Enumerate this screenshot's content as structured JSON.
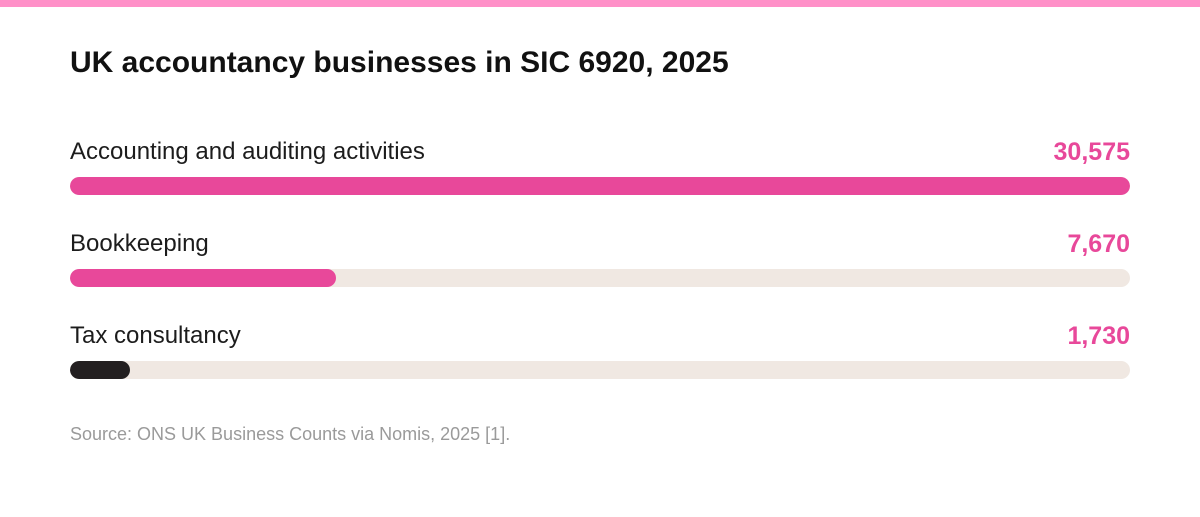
{
  "colors": {
    "accent": "#e8489a",
    "top_bar": "#ff90c8",
    "track": "#f0e8e2",
    "dark": "#231f20",
    "source_text": "#9a9a9a"
  },
  "chart_data": {
    "type": "bar",
    "orientation": "horizontal",
    "title": "UK accountancy businesses in SIC 6920, 2025",
    "categories": [
      "Accounting and auditing activities",
      "Bookkeeping",
      "Tax consultancy"
    ],
    "values": [
      30575,
      7670,
      1730
    ],
    "value_labels": [
      "30,575",
      "7,670",
      "1,730"
    ],
    "bar_colors": [
      "#e8489a",
      "#e8489a",
      "#231f20"
    ],
    "value_colors": [
      "#e8489a",
      "#e8489a",
      "#e8489a"
    ],
    "xlim": [
      0,
      30575
    ],
    "grid": false,
    "legend": "none"
  },
  "source": "Source: ONS UK Business Counts via Nomis, 2025 [1]."
}
